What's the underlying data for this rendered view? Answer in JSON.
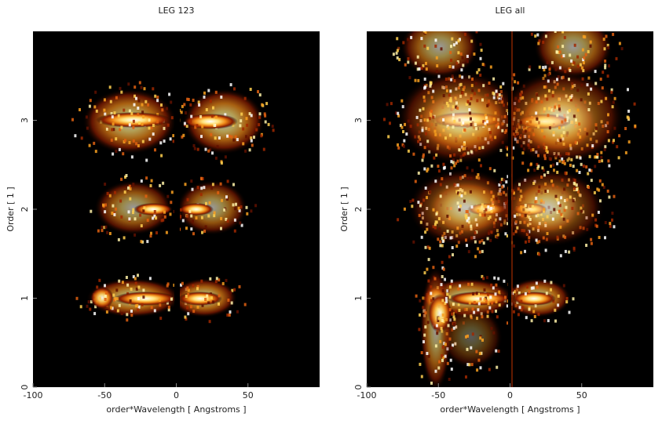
{
  "chart_data": [
    {
      "type": "heatmap",
      "title": "LEG 123",
      "xlabel": "order*Wavelength [ Angstroms ]",
      "ylabel": "Order [ 1 ]",
      "xlim": [
        -100,
        100
      ],
      "ylim": [
        0,
        4
      ],
      "xticks": [
        -100,
        -50,
        0,
        50
      ],
      "yticks": [
        0,
        1,
        2,
        3
      ],
      "colormap": "hot"
    },
    {
      "type": "heatmap",
      "title": "LEG all",
      "xlabel": "order*Wavelength [ Angstroms ]",
      "ylabel": "Order [ 1 ]",
      "xlim": [
        -100,
        100
      ],
      "ylim": [
        0,
        4
      ],
      "xticks": [
        -100,
        -50,
        0,
        50
      ],
      "yticks": [
        0,
        1,
        2,
        3
      ],
      "colormap": "hot"
    }
  ]
}
